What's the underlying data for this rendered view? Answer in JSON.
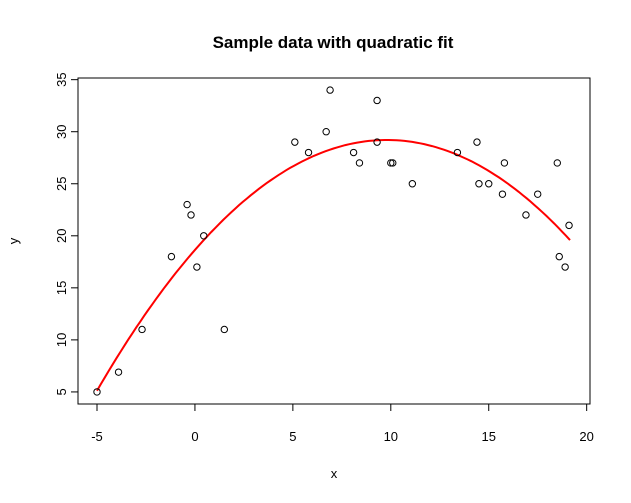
{
  "chart_data": {
    "type": "scatter",
    "title": "Sample data with quadratic fit",
    "xlabel": "x",
    "ylabel": "y",
    "xlim": [
      -5.97,
      20.17
    ],
    "ylim": [
      3.84,
      35.16
    ],
    "xticks": [
      -5,
      0,
      5,
      10,
      15,
      20
    ],
    "yticks": [
      5,
      10,
      15,
      20,
      25,
      30,
      35
    ],
    "grid": false,
    "points": [
      [
        -5,
        5
      ],
      [
        -3.9,
        6.9
      ],
      [
        -2.7,
        11
      ],
      [
        -1.2,
        18
      ],
      [
        -0.4,
        23
      ],
      [
        -0.2,
        22
      ],
      [
        0.1,
        17
      ],
      [
        0.45,
        20
      ],
      [
        1.5,
        11
      ],
      [
        5.1,
        29
      ],
      [
        5.8,
        28
      ],
      [
        6.7,
        30
      ],
      [
        6.9,
        34
      ],
      [
        8.1,
        28
      ],
      [
        8.4,
        27
      ],
      [
        9.3,
        33
      ],
      [
        9.3,
        29
      ],
      [
        10.0,
        27
      ],
      [
        10.1,
        27
      ],
      [
        11.1,
        25
      ],
      [
        13.4,
        28
      ],
      [
        14.4,
        29
      ],
      [
        14.5,
        25
      ],
      [
        15.0,
        25
      ],
      [
        15.7,
        24
      ],
      [
        15.8,
        27
      ],
      [
        16.9,
        22
      ],
      [
        17.5,
        24
      ],
      [
        18.5,
        27
      ],
      [
        18.6,
        18
      ],
      [
        18.9,
        17
      ],
      [
        19.1,
        21
      ]
    ],
    "fit": {
      "type": "quadratic",
      "coefficients": [
        18.64,
        2.156,
        -0.11
      ],
      "x_range": [
        -5,
        19.15
      ],
      "color": "#ff0000"
    },
    "point_color": "#000000"
  }
}
